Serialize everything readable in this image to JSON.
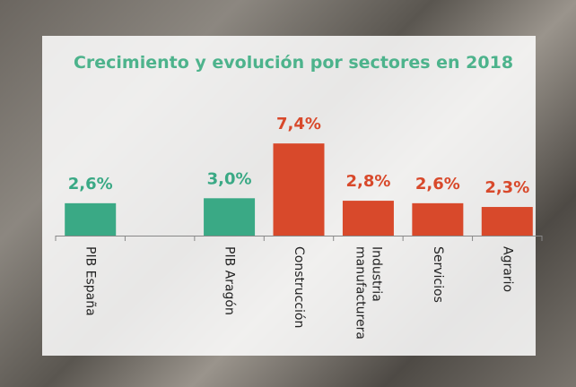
{
  "chart_data": {
    "type": "bar",
    "title": "Crecimiento y evolución por sectores en 2018",
    "categories": [
      "PIB España",
      null,
      "PIB Aragón",
      "Construcción",
      "Industria manufacturera",
      "Servicios",
      "Agrario"
    ],
    "values": [
      2.6,
      null,
      3.0,
      7.4,
      2.8,
      2.6,
      2.3
    ],
    "value_labels": [
      "2,6%",
      null,
      "3,0%",
      "7,4%",
      "2,8%",
      "2,6%",
      "2,3%"
    ],
    "colors": [
      "#3aa985",
      null,
      "#3aa985",
      "#d8492b",
      "#d8492b",
      "#d8492b",
      "#d8492b"
    ]
  }
}
